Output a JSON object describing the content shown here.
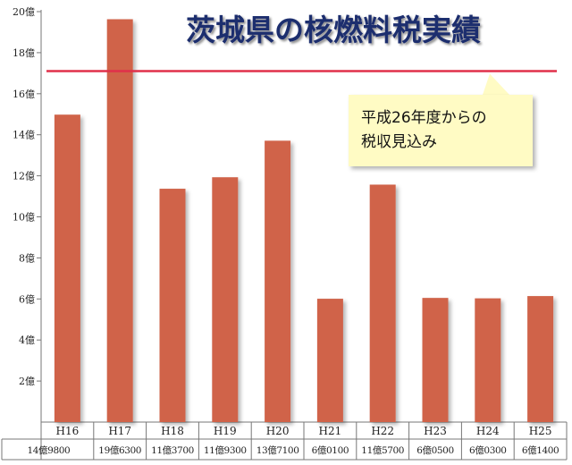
{
  "chart_data": {
    "type": "bar",
    "title": "茨城県の核燃料税実績",
    "categories": [
      "H16",
      "H17",
      "H18",
      "H19",
      "H20",
      "H21",
      "H22",
      "H23",
      "H24",
      "H25"
    ],
    "value_labels": [
      "14億9800",
      "19億6300",
      "11億3700",
      "11億9300",
      "13億7100",
      "6億0100",
      "11億5700",
      "6億0500",
      "6億0300",
      "6億1400"
    ],
    "values": [
      14.98,
      19.63,
      11.37,
      11.93,
      13.71,
      6.01,
      11.57,
      6.05,
      6.03,
      6.14
    ],
    "ylim": [
      0,
      20
    ],
    "yticks": [
      2,
      4,
      6,
      8,
      10,
      12,
      14,
      16,
      18,
      20
    ],
    "ytick_labels": [
      "2億",
      "4億",
      "6億",
      "8億",
      "10億",
      "12億",
      "14億",
      "16億",
      "18億",
      "20億"
    ],
    "bar_color": "#d0634a",
    "reference_line": {
      "value": 17.1,
      "color": "#e0304a",
      "annotation_lines": [
        "平成26年度からの",
        "税収見込み"
      ]
    },
    "grid": false
  }
}
